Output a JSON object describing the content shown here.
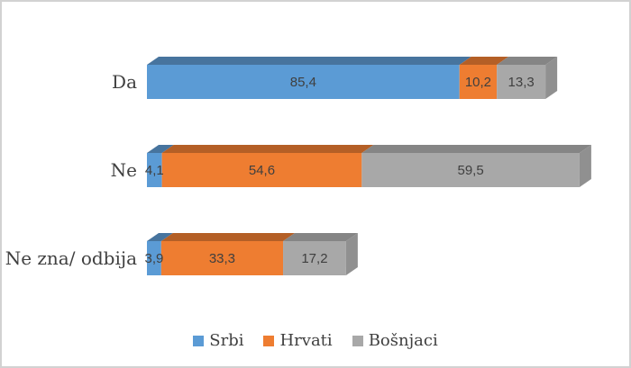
{
  "frame": {
    "background": "#ffffff",
    "border_color": "#d2d2d2"
  },
  "chart_data": {
    "type": "bar",
    "orientation": "horizontal",
    "stacked": true,
    "effect": "3d",
    "title": "",
    "xlabel": "",
    "ylabel": "",
    "axes_visible": false,
    "grid": false,
    "xlim": [
      0,
      120
    ],
    "categories": [
      "Da",
      "Ne",
      "Ne zna/ odbija"
    ],
    "series": [
      {
        "name": "Srbi",
        "color": "#5b9bd5",
        "color_top": "#47749e",
        "color_side": "#4d7ba7",
        "values": [
          85.4,
          4.1,
          3.9
        ],
        "labels": [
          "85,4",
          "4,1",
          "3,9"
        ]
      },
      {
        "name": "Hrvati",
        "color": "#ee7d31",
        "color_top": "#b45f26",
        "color_side": "#c2682a",
        "values": [
          10.2,
          54.6,
          33.3
        ],
        "labels": [
          "10,2",
          "54,6",
          "33,3"
        ]
      },
      {
        "name": "Bošnjaci",
        "color": "#a8a8a8",
        "color_top": "#858585",
        "color_side": "#909090",
        "values": [
          13.3,
          59.5,
          17.2
        ],
        "labels": [
          "13,3",
          "59,5",
          "17,2"
        ]
      }
    ],
    "data_labels": true,
    "value_format": "decimal-comma",
    "label_color": "#3f3f3f",
    "category_color": "#404040",
    "legend_position": "bottom",
    "legend": [
      "Srbi",
      "Hrvati",
      "Bošnjaci"
    ]
  }
}
